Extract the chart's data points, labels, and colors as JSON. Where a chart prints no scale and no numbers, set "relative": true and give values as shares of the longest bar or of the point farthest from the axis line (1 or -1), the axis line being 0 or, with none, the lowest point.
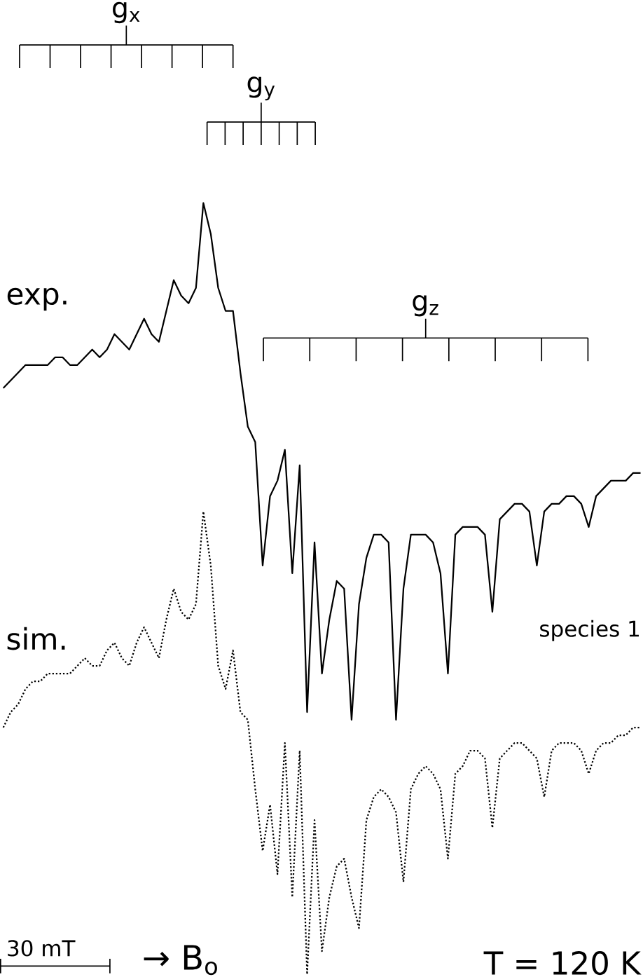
{
  "chart_data": {
    "type": "line",
    "relative": true,
    "categories": [
      null,
      null,
      null,
      null,
      null,
      null,
      null,
      null,
      null,
      null,
      null,
      null,
      null,
      null,
      null,
      null,
      null,
      null,
      null,
      null,
      null,
      null,
      null,
      null,
      null,
      null,
      null,
      null,
      null,
      null,
      null,
      null,
      null,
      null,
      null,
      null,
      null,
      null,
      null,
      null,
      null,
      null,
      null,
      null,
      null,
      null,
      null,
      null,
      null,
      null,
      null,
      null,
      null,
      null,
      null,
      null,
      null,
      null,
      null,
      null,
      null,
      null,
      null,
      null,
      null,
      null,
      null,
      null,
      null,
      null,
      null,
      null,
      null,
      null,
      null,
      null,
      null,
      null,
      null,
      null,
      null,
      null,
      null,
      null,
      null,
      null,
      null
    ],
    "series": [
      {
        "name": "exp.",
        "color": "#000000",
        "line_style": "solid",
        "values": [
          0.76,
          0.77,
          0.78,
          0.79,
          0.79,
          0.79,
          0.79,
          0.8,
          0.8,
          0.79,
          0.79,
          0.8,
          0.81,
          0.8,
          0.81,
          0.83,
          0.82,
          0.81,
          0.83,
          0.85,
          0.83,
          0.82,
          0.86,
          0.9,
          0.88,
          0.87,
          0.89,
          1.0,
          0.96,
          0.89,
          0.86,
          0.86,
          0.78,
          0.71,
          0.69,
          0.53,
          0.62,
          0.64,
          0.68,
          0.52,
          0.66,
          0.34,
          0.56,
          0.39,
          0.46,
          0.51,
          0.5,
          0.33,
          0.48,
          0.54,
          0.57,
          0.57,
          0.56,
          0.33,
          0.5,
          0.57,
          0.57,
          0.57,
          0.56,
          0.52,
          0.39,
          0.57,
          0.58,
          0.58,
          0.58,
          0.57,
          0.47,
          0.59,
          0.6,
          0.61,
          0.61,
          0.6,
          0.53,
          0.6,
          0.61,
          0.61,
          0.62,
          0.62,
          0.61,
          0.58,
          0.62,
          0.63,
          0.64,
          0.64,
          0.64,
          0.65,
          0.65
        ]
      },
      {
        "name": "sim.",
        "color": "#000000",
        "line_style": "dotted",
        "values": [
          0.32,
          0.34,
          0.35,
          0.37,
          0.38,
          0.38,
          0.39,
          0.39,
          0.39,
          0.39,
          0.4,
          0.41,
          0.4,
          0.4,
          0.42,
          0.43,
          0.41,
          0.4,
          0.43,
          0.45,
          0.43,
          0.41,
          0.46,
          0.5,
          0.47,
          0.46,
          0.48,
          0.6,
          0.53,
          0.4,
          0.37,
          0.42,
          0.34,
          0.33,
          0.24,
          0.16,
          0.22,
          0.13,
          0.3,
          0.1,
          0.29,
          0,
          0.2,
          0.03,
          0.1,
          0.14,
          0.15,
          0.1,
          0.06,
          0.2,
          0.23,
          0.24,
          0.23,
          0.21,
          0.12,
          0.24,
          0.26,
          0.27,
          0.26,
          0.24,
          0.15,
          0.26,
          0.27,
          0.29,
          0.29,
          0.28,
          0.19,
          0.28,
          0.29,
          0.3,
          0.3,
          0.29,
          0.28,
          0.23,
          0.29,
          0.3,
          0.3,
          0.3,
          0.29,
          0.26,
          0.29,
          0.3,
          0.3,
          0.31,
          0.31,
          0.32,
          0.32
        ]
      }
    ],
    "annotations": [
      "g$_{x}$",
      "g$_{y}$",
      "g$_{z}$",
      "species 1",
      "30 mT",
      "→ B$_{o}$",
      "T = 120 K"
    ]
  }
}
